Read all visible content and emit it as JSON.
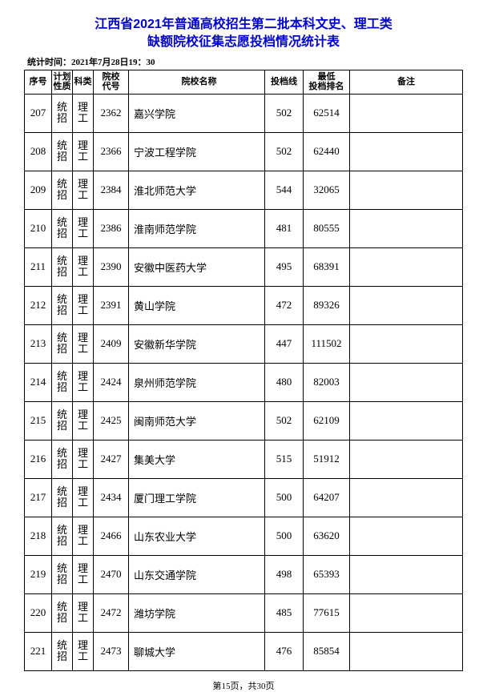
{
  "title_line1": "江西省2021年普通高校招生第二批本科文史、理工类",
  "title_line2": "缺额院校征集志愿投档情况统计表",
  "stat_time_label": "统计时间：",
  "stat_time_value": "2021年7月28日19：30",
  "columns": {
    "seq": "序号",
    "plan": "计划\n性质",
    "cat": "科类",
    "code": "院校\n代号",
    "name": "院校名称",
    "score": "投档线",
    "rank": "最低\n投档排名",
    "note": "备注"
  },
  "plan_label": "统招",
  "cat_label": "理工",
  "rows": [
    {
      "seq": "207",
      "code": "2362",
      "name": "嘉兴学院",
      "score": "502",
      "rank": "62514",
      "note": ""
    },
    {
      "seq": "208",
      "code": "2366",
      "name": "宁波工程学院",
      "score": "502",
      "rank": "62440",
      "note": ""
    },
    {
      "seq": "209",
      "code": "2384",
      "name": "淮北师范大学",
      "score": "544",
      "rank": "32065",
      "note": ""
    },
    {
      "seq": "210",
      "code": "2386",
      "name": "淮南师范学院",
      "score": "481",
      "rank": "80555",
      "note": ""
    },
    {
      "seq": "211",
      "code": "2390",
      "name": "安徽中医药大学",
      "score": "495",
      "rank": "68391",
      "note": ""
    },
    {
      "seq": "212",
      "code": "2391",
      "name": "黄山学院",
      "score": "472",
      "rank": "89326",
      "note": ""
    },
    {
      "seq": "213",
      "code": "2409",
      "name": "安徽新华学院",
      "score": "447",
      "rank": "111502",
      "note": ""
    },
    {
      "seq": "214",
      "code": "2424",
      "name": "泉州师范学院",
      "score": "480",
      "rank": "82003",
      "note": ""
    },
    {
      "seq": "215",
      "code": "2425",
      "name": "闽南师范大学",
      "score": "502",
      "rank": "62109",
      "note": ""
    },
    {
      "seq": "216",
      "code": "2427",
      "name": "集美大学",
      "score": "515",
      "rank": "51912",
      "note": ""
    },
    {
      "seq": "217",
      "code": "2434",
      "name": "厦门理工学院",
      "score": "500",
      "rank": "64207",
      "note": ""
    },
    {
      "seq": "218",
      "code": "2466",
      "name": "山东农业大学",
      "score": "500",
      "rank": "63620",
      "note": ""
    },
    {
      "seq": "219",
      "code": "2470",
      "name": "山东交通学院",
      "score": "498",
      "rank": "65393",
      "note": ""
    },
    {
      "seq": "220",
      "code": "2472",
      "name": "潍坊学院",
      "score": "485",
      "rank": "77615",
      "note": ""
    },
    {
      "seq": "221",
      "code": "2473",
      "name": "聊城大学",
      "score": "476",
      "rank": "85854",
      "note": ""
    }
  ],
  "footer": "第15页，共30页",
  "colors": {
    "title": "#0000cc",
    "border": "#000000",
    "text": "#000000",
    "background": "#ffffff"
  }
}
